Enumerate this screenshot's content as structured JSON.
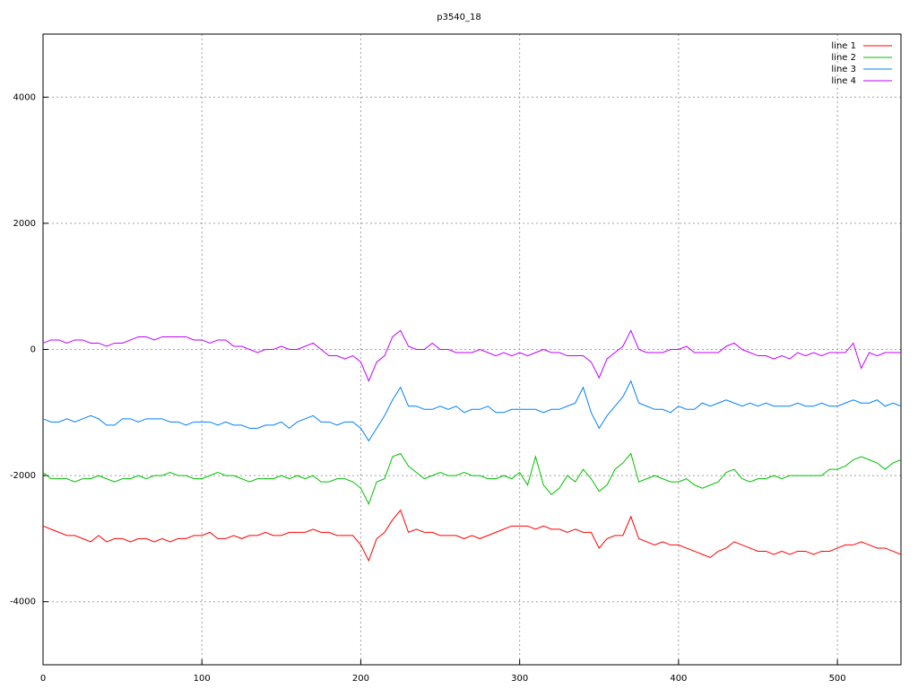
{
  "chart_data": {
    "type": "line",
    "title": "p3540_18",
    "x": [
      0,
      5,
      10,
      15,
      20,
      25,
      30,
      35,
      40,
      45,
      50,
      55,
      60,
      65,
      70,
      75,
      80,
      85,
      90,
      95,
      100,
      105,
      110,
      115,
      120,
      125,
      130,
      135,
      140,
      145,
      150,
      155,
      160,
      165,
      170,
      175,
      180,
      185,
      190,
      195,
      200,
      205,
      210,
      215,
      220,
      225,
      230,
      235,
      240,
      245,
      250,
      255,
      260,
      265,
      270,
      275,
      280,
      285,
      290,
      295,
      300,
      305,
      310,
      315,
      320,
      325,
      330,
      335,
      340,
      345,
      350,
      355,
      360,
      365,
      370,
      375,
      380,
      385,
      390,
      395,
      400,
      405,
      410,
      415,
      420,
      425,
      430,
      435,
      440,
      445,
      450,
      455,
      460,
      465,
      470,
      475,
      480,
      485,
      490,
      495,
      500,
      505,
      510,
      515,
      520,
      525,
      530,
      535,
      540
    ],
    "series": [
      {
        "name": "line 1",
        "color": "#ff0000",
        "values": [
          -2800,
          -2850,
          -2900,
          -2950,
          -2950,
          -3000,
          -3050,
          -2950,
          -3050,
          -3000,
          -3000,
          -3050,
          -3000,
          -3000,
          -3050,
          -3000,
          -3050,
          -3000,
          -3000,
          -2950,
          -2950,
          -2900,
          -3000,
          -3000,
          -2950,
          -3000,
          -2950,
          -2950,
          -2900,
          -2950,
          -2950,
          -2900,
          -2900,
          -2900,
          -2850,
          -2900,
          -2900,
          -2950,
          -2950,
          -2950,
          -3100,
          -3350,
          -3000,
          -2900,
          -2700,
          -2550,
          -2900,
          -2850,
          -2900,
          -2900,
          -2950,
          -2950,
          -2950,
          -3000,
          -2950,
          -3000,
          -2950,
          -2900,
          -2850,
          -2800,
          -2800,
          -2800,
          -2850,
          -2800,
          -2850,
          -2850,
          -2900,
          -2850,
          -2900,
          -2900,
          -3150,
          -3000,
          -2950,
          -2950,
          -2650,
          -3000,
          -3050,
          -3100,
          -3050,
          -3100,
          -3100,
          -3150,
          -3200,
          -3250,
          -3300,
          -3200,
          -3150,
          -3050,
          -3100,
          -3150,
          -3200,
          -3200,
          -3250,
          -3200,
          -3250,
          -3200,
          -3200,
          -3250,
          -3200,
          -3200,
          -3150,
          -3100,
          -3100,
          -3050,
          -3100,
          -3150,
          -3150,
          -3200,
          -3250
        ]
      },
      {
        "name": "line 2",
        "color": "#00c000",
        "values": [
          -1950,
          -2050,
          -2050,
          -2050,
          -2100,
          -2050,
          -2050,
          -2000,
          -2050,
          -2100,
          -2050,
          -2050,
          -2000,
          -2050,
          -2000,
          -2000,
          -1950,
          -2000,
          -2000,
          -2050,
          -2050,
          -2000,
          -1950,
          -2000,
          -2000,
          -2050,
          -2100,
          -2050,
          -2050,
          -2050,
          -2000,
          -2050,
          -2000,
          -2050,
          -2000,
          -2100,
          -2100,
          -2050,
          -2050,
          -2100,
          -2200,
          -2450,
          -2100,
          -2050,
          -1700,
          -1650,
          -1850,
          -1950,
          -2050,
          -2000,
          -1950,
          -2000,
          -2000,
          -1950,
          -2000,
          -2000,
          -2050,
          -2050,
          -2000,
          -2050,
          -1950,
          -2150,
          -1700,
          -2150,
          -2300,
          -2200,
          -2000,
          -2100,
          -1900,
          -2050,
          -2250,
          -2150,
          -1900,
          -1800,
          -1650,
          -2100,
          -2050,
          -2000,
          -2050,
          -2100,
          -2100,
          -2050,
          -2150,
          -2200,
          -2150,
          -2100,
          -1950,
          -1900,
          -2050,
          -2100,
          -2050,
          -2050,
          -2000,
          -2050,
          -2000,
          -2000,
          -2000,
          -2000,
          -2000,
          -1900,
          -1900,
          -1850,
          -1750,
          -1700,
          -1750,
          -1800,
          -1900,
          -1800,
          -1750
        ]
      },
      {
        "name": "line 3",
        "color": "#0080ff",
        "values": [
          -1100,
          -1150,
          -1150,
          -1100,
          -1150,
          -1100,
          -1050,
          -1100,
          -1200,
          -1200,
          -1100,
          -1100,
          -1150,
          -1100,
          -1100,
          -1100,
          -1150,
          -1150,
          -1200,
          -1150,
          -1150,
          -1150,
          -1200,
          -1150,
          -1200,
          -1200,
          -1250,
          -1250,
          -1200,
          -1200,
          -1150,
          -1250,
          -1150,
          -1100,
          -1050,
          -1150,
          -1150,
          -1200,
          -1150,
          -1150,
          -1250,
          -1450,
          -1250,
          -1050,
          -800,
          -600,
          -900,
          -900,
          -950,
          -950,
          -900,
          -950,
          -900,
          -1000,
          -950,
          -950,
          -900,
          -1000,
          -1000,
          -950,
          -950,
          -950,
          -950,
          -1000,
          -950,
          -950,
          -900,
          -850,
          -600,
          -1000,
          -1250,
          -1050,
          -900,
          -750,
          -500,
          -850,
          -900,
          -950,
          -950,
          -1000,
          -900,
          -950,
          -950,
          -850,
          -900,
          -850,
          -800,
          -850,
          -900,
          -850,
          -900,
          -850,
          -900,
          -900,
          -900,
          -850,
          -900,
          -900,
          -850,
          -900,
          -900,
          -850,
          -800,
          -850,
          -850,
          -800,
          -900,
          -850,
          -900
        ]
      },
      {
        "name": "line 4",
        "color": "#c000ff",
        "values": [
          100,
          150,
          150,
          100,
          150,
          150,
          100,
          100,
          50,
          100,
          100,
          150,
          200,
          200,
          150,
          200,
          200,
          200,
          200,
          150,
          150,
          100,
          150,
          150,
          50,
          50,
          0,
          -50,
          0,
          0,
          50,
          0,
          0,
          50,
          100,
          0,
          -100,
          -100,
          -150,
          -100,
          -200,
          -500,
          -200,
          -100,
          200,
          300,
          50,
          0,
          0,
          100,
          0,
          0,
          -50,
          -50,
          -50,
          0,
          -50,
          -100,
          -50,
          -100,
          -50,
          -100,
          -50,
          0,
          -50,
          -50,
          -100,
          -100,
          -100,
          -200,
          -450,
          -150,
          -50,
          50,
          300,
          0,
          -50,
          -50,
          -50,
          0,
          0,
          50,
          -50,
          -50,
          -50,
          -50,
          50,
          100,
          0,
          -50,
          -100,
          -100,
          -150,
          -100,
          -150,
          -50,
          -100,
          -50,
          -100,
          -50,
          -50,
          -50,
          100,
          -300,
          -50,
          -100,
          -50,
          -50,
          -50
        ]
      }
    ],
    "xlim": [
      0,
      540
    ],
    "ylim": [
      -5000,
      5000
    ],
    "xticks": [
      0,
      100,
      200,
      300,
      400,
      500
    ],
    "yticks": [
      -4000,
      -2000,
      0,
      2000,
      4000
    ],
    "grid": true,
    "legend": "top-right"
  }
}
